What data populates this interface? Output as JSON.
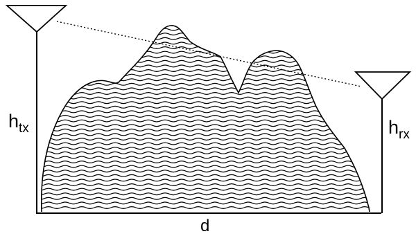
{
  "labels": {
    "tx_height": {
      "main": "h",
      "sub": "tx"
    },
    "rx_height": {
      "main": "h",
      "sub": "rx"
    },
    "distance": "d"
  },
  "colors": {
    "ink": "#000000",
    "background": "#ffffff"
  },
  "icons": {
    "tx": "transmitter-antenna-icon",
    "rx": "receiver-antenna-icon"
  }
}
